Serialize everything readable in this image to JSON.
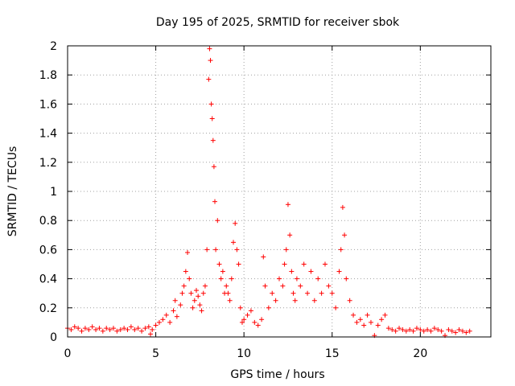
{
  "chart_data": {
    "type": "scatter",
    "title": "Day 195 of 2025, SRMTID for receiver sbok",
    "xlabel": "GPS time / hours",
    "ylabel": "SRMTID / TECUs",
    "xlim": [
      0,
      24
    ],
    "ylim": [
      0,
      2
    ],
    "xticks": [
      0,
      5,
      10,
      15,
      20
    ],
    "xtick_labels": [
      "0",
      "5",
      "10",
      "15",
      "20"
    ],
    "yticks": [
      0,
      0.2,
      0.4,
      0.6,
      0.8,
      1,
      1.2,
      1.4,
      1.6,
      1.8,
      2
    ],
    "ytick_labels": [
      "0",
      "0.2",
      "0.4",
      "0.6",
      "0.8",
      "1",
      "1.2",
      "1.4",
      "1.6",
      "1.8",
      "2"
    ],
    "grid": true,
    "marker": "+",
    "series": [
      {
        "name": "SRMTID",
        "color": "#ff0000",
        "x": [
          0.0,
          0.2,
          0.4,
          0.6,
          0.8,
          1.0,
          1.2,
          1.4,
          1.6,
          1.8,
          2.0,
          2.2,
          2.4,
          2.6,
          2.8,
          3.0,
          3.2,
          3.4,
          3.6,
          3.8,
          4.0,
          4.2,
          4.4,
          4.6,
          4.7,
          4.8,
          5.0,
          5.2,
          5.4,
          5.6,
          5.8,
          6.0,
          6.1,
          6.2,
          6.4,
          6.5,
          6.6,
          6.7,
          6.8,
          6.9,
          7.0,
          7.1,
          7.2,
          7.3,
          7.4,
          7.5,
          7.6,
          7.7,
          7.8,
          7.9,
          8.0,
          8.05,
          8.1,
          8.15,
          8.2,
          8.25,
          8.3,
          8.35,
          8.4,
          8.5,
          8.6,
          8.7,
          8.8,
          8.9,
          9.0,
          9.1,
          9.2,
          9.3,
          9.4,
          9.5,
          9.6,
          9.7,
          9.8,
          9.9,
          10.0,
          10.2,
          10.4,
          10.6,
          10.8,
          11.0,
          11.1,
          11.2,
          11.4,
          11.6,
          11.8,
          12.0,
          12.2,
          12.3,
          12.4,
          12.5,
          12.6,
          12.7,
          12.8,
          12.9,
          13.0,
          13.2,
          13.4,
          13.6,
          13.8,
          14.0,
          14.2,
          14.4,
          14.6,
          14.8,
          15.0,
          15.2,
          15.4,
          15.5,
          15.6,
          15.7,
          15.8,
          16.0,
          16.2,
          16.4,
          16.6,
          16.8,
          17.0,
          17.2,
          17.4,
          17.6,
          17.8,
          18.0,
          18.2,
          18.4,
          18.6,
          18.8,
          19.0,
          19.2,
          19.4,
          19.6,
          19.8,
          20.0,
          20.2,
          20.4,
          20.6,
          20.8,
          21.0,
          21.2,
          21.4,
          21.6,
          21.8,
          22.0,
          22.2,
          22.4,
          22.6,
          22.8
        ],
        "y": [
          0.06,
          0.05,
          0.07,
          0.06,
          0.04,
          0.06,
          0.05,
          0.07,
          0.05,
          0.06,
          0.04,
          0.06,
          0.05,
          0.06,
          0.04,
          0.05,
          0.06,
          0.05,
          0.07,
          0.05,
          0.06,
          0.04,
          0.06,
          0.07,
          0.02,
          0.05,
          0.08,
          0.1,
          0.12,
          0.15,
          0.1,
          0.18,
          0.25,
          0.14,
          0.22,
          0.3,
          0.35,
          0.45,
          0.58,
          0.4,
          0.3,
          0.2,
          0.25,
          0.32,
          0.28,
          0.22,
          0.18,
          0.3,
          0.35,
          0.6,
          1.77,
          1.98,
          1.9,
          1.6,
          1.5,
          1.35,
          1.17,
          0.93,
          0.6,
          0.8,
          0.5,
          0.4,
          0.45,
          0.3,
          0.35,
          0.3,
          0.25,
          0.4,
          0.65,
          0.78,
          0.6,
          0.5,
          0.2,
          0.1,
          0.12,
          0.15,
          0.18,
          0.1,
          0.08,
          0.12,
          0.55,
          0.35,
          0.2,
          0.3,
          0.25,
          0.4,
          0.35,
          0.5,
          0.6,
          0.91,
          0.7,
          0.45,
          0.3,
          0.25,
          0.4,
          0.35,
          0.5,
          0.3,
          0.45,
          0.25,
          0.4,
          0.3,
          0.5,
          0.35,
          0.3,
          0.2,
          0.45,
          0.6,
          0.89,
          0.7,
          0.4,
          0.25,
          0.15,
          0.1,
          0.12,
          0.08,
          0.15,
          0.1,
          0.01,
          0.08,
          0.12,
          0.15,
          0.06,
          0.05,
          0.04,
          0.06,
          0.05,
          0.04,
          0.05,
          0.04,
          0.06,
          0.05,
          0.04,
          0.05,
          0.04,
          0.06,
          0.05,
          0.04,
          0.01,
          0.05,
          0.04,
          0.03,
          0.05,
          0.04,
          0.03,
          0.04
        ]
      }
    ]
  }
}
